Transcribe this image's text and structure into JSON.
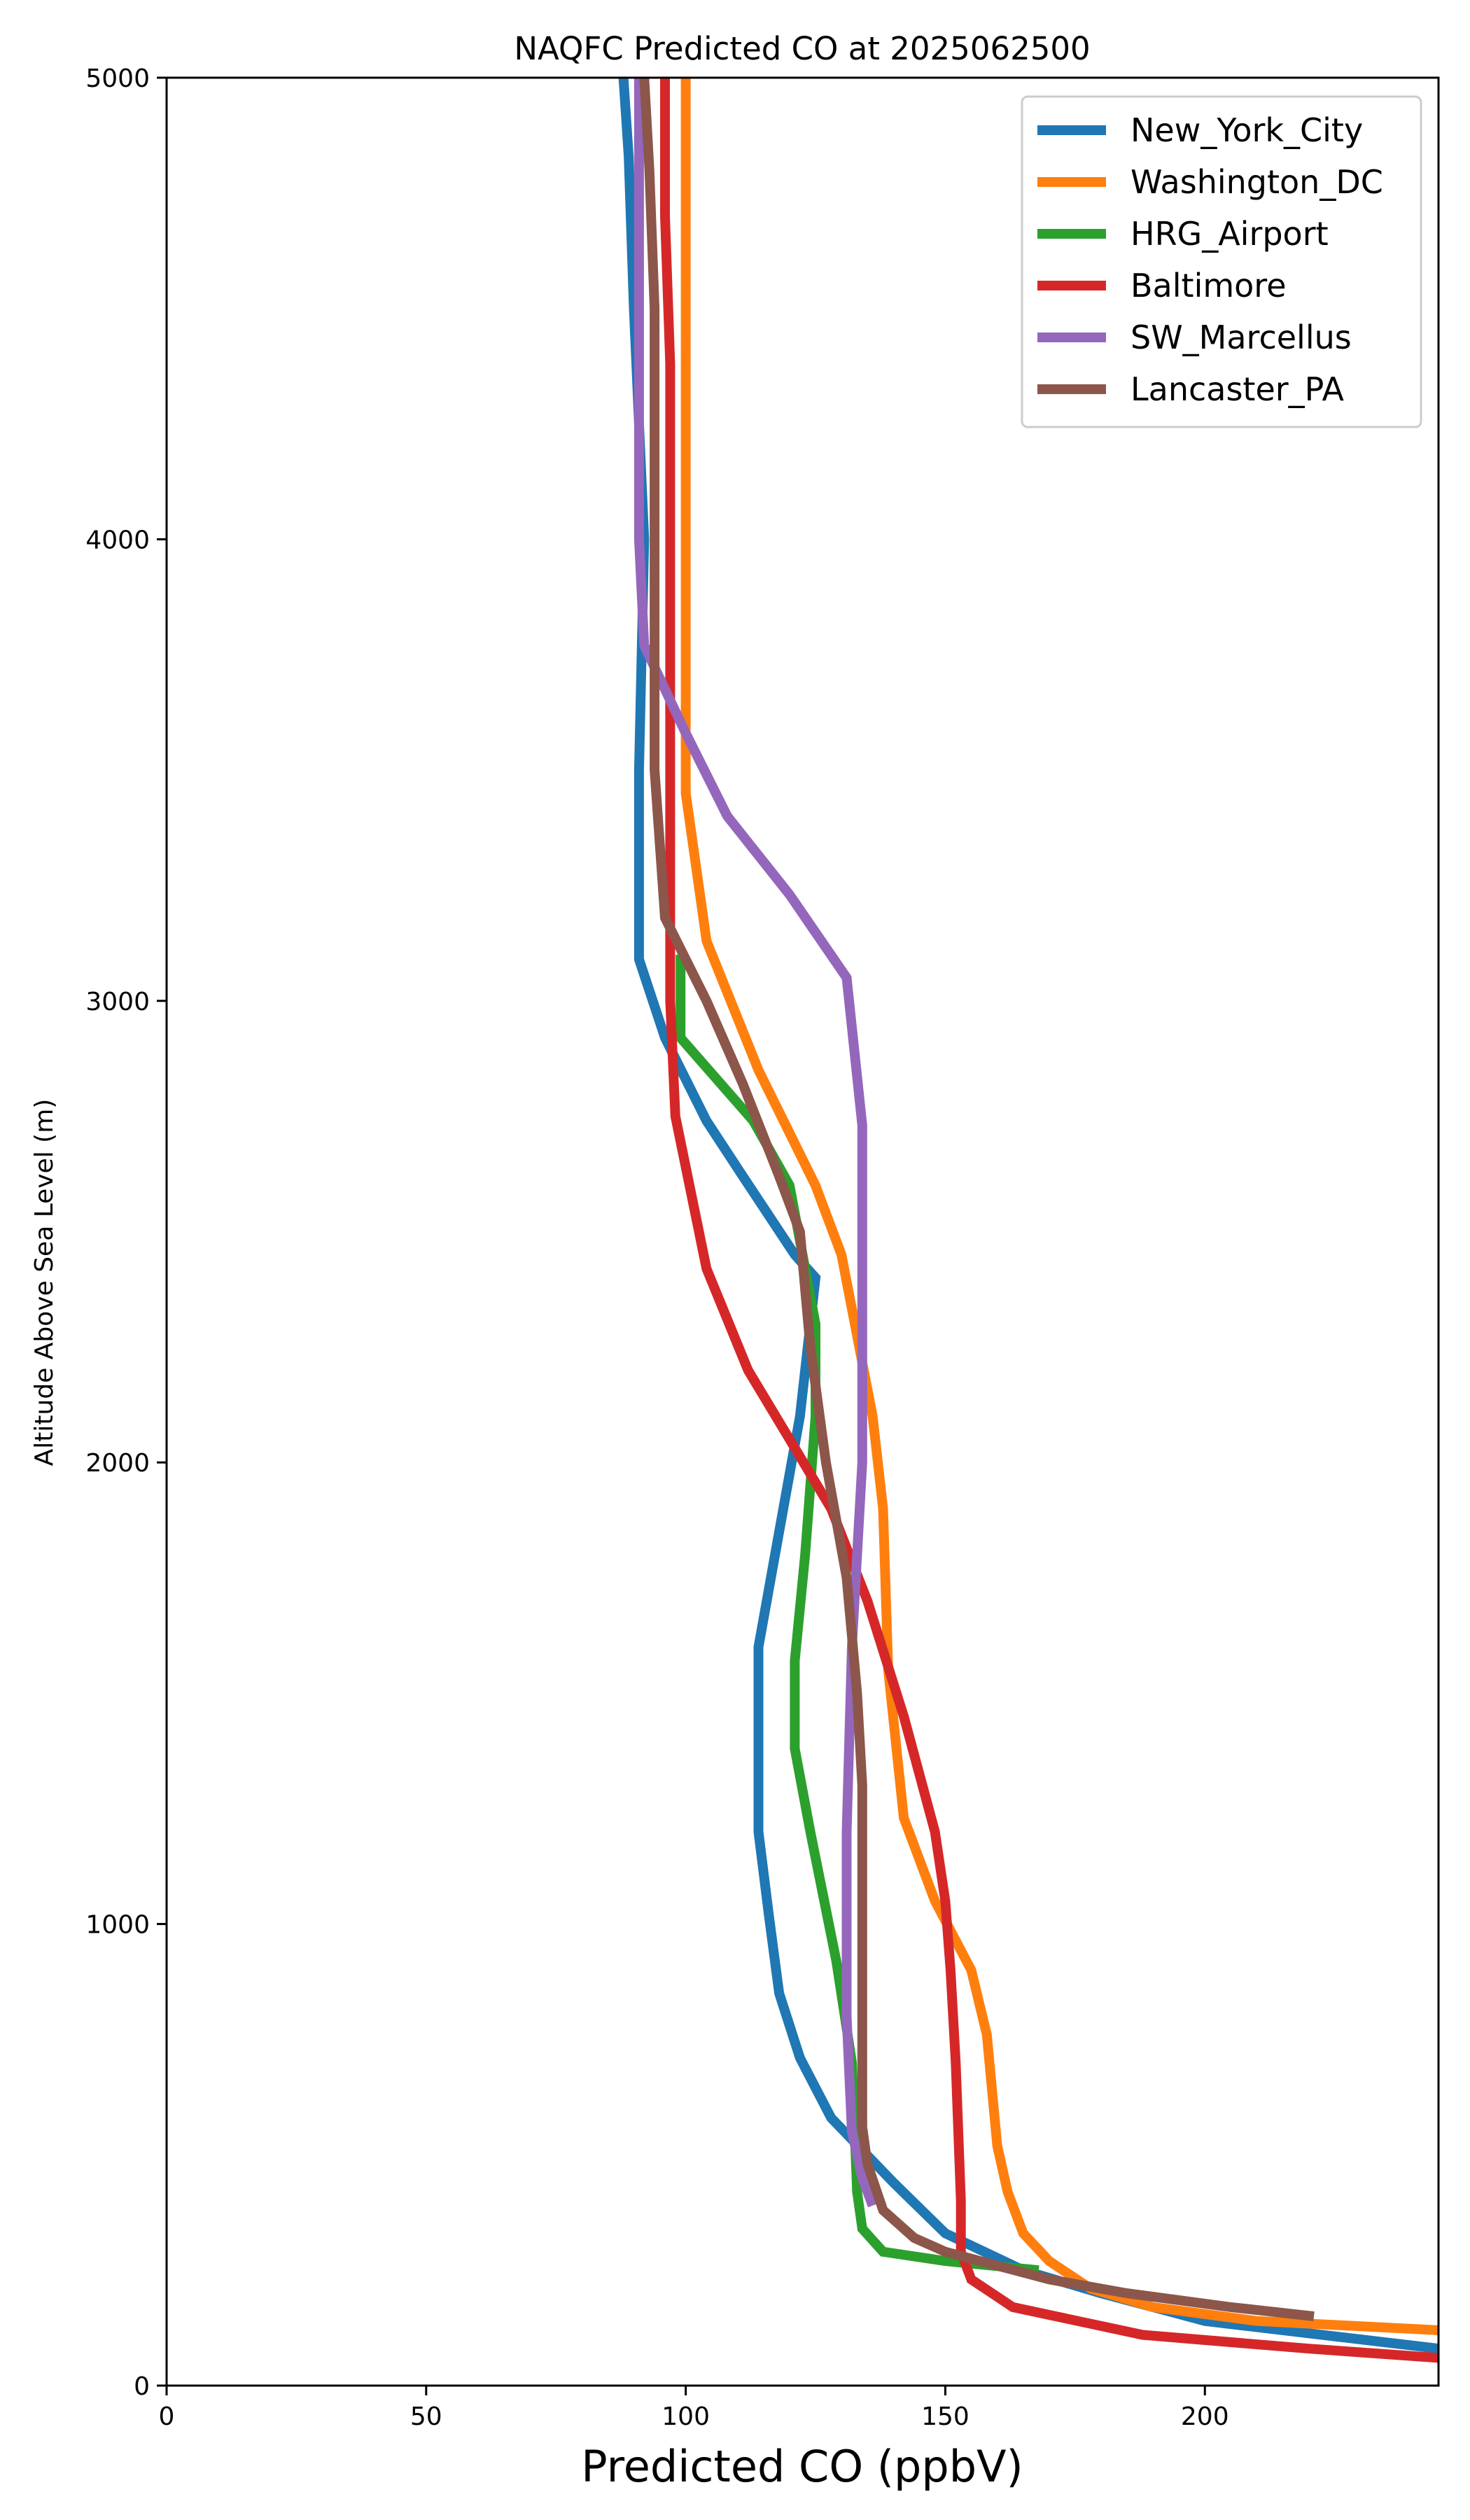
{
  "chart_data": {
    "type": "line",
    "title": "NAQFC Predicted CO at 2025062500",
    "xlabel": "Predicted CO (ppbV)",
    "ylabel": "Altitude Above Sea Level (m)",
    "xlim": [
      0,
      245
    ],
    "ylim": [
      0,
      5000
    ],
    "xticks": [
      "0",
      "50",
      "100",
      "150",
      "200"
    ],
    "yticks": [
      "0",
      "1000",
      "2000",
      "3000",
      "4000",
      "5000"
    ],
    "grid": false,
    "legend_position": "top-right",
    "series": [
      {
        "name": "New_York_City",
        "color": "#1f77b4",
        "points": [
          [
            245,
            80
          ],
          [
            200,
            140
          ],
          [
            180,
            200
          ],
          [
            165,
            250
          ],
          [
            150,
            330
          ],
          [
            140,
            440
          ],
          [
            128,
            580
          ],
          [
            122,
            710
          ],
          [
            118,
            850
          ],
          [
            116,
            1020
          ],
          [
            114,
            1200
          ],
          [
            114,
            1380
          ],
          [
            114,
            1600
          ],
          [
            118,
            1850
          ],
          [
            122,
            2100
          ],
          [
            125,
            2400
          ],
          [
            121,
            2450
          ],
          [
            111,
            2620
          ],
          [
            104,
            2740
          ],
          [
            96,
            2920
          ],
          [
            91,
            3090
          ],
          [
            91,
            3500
          ],
          [
            92,
            4000
          ],
          [
            90,
            4500
          ],
          [
            89,
            4830
          ],
          [
            88,
            5000
          ]
        ]
      },
      {
        "name": "Washington_DC",
        "color": "#ff7f0e",
        "points": [
          [
            245,
            120
          ],
          [
            210,
            140
          ],
          [
            190,
            170
          ],
          [
            178,
            210
          ],
          [
            170,
            270
          ],
          [
            165,
            330
          ],
          [
            162,
            420
          ],
          [
            160,
            520
          ],
          [
            158,
            760
          ],
          [
            155,
            900
          ],
          [
            148,
            1050
          ],
          [
            142,
            1230
          ],
          [
            139,
            1550
          ],
          [
            138,
            1900
          ],
          [
            136,
            2100
          ],
          [
            130,
            2450
          ],
          [
            125,
            2600
          ],
          [
            114,
            2850
          ],
          [
            104,
            3130
          ],
          [
            100,
            3450
          ],
          [
            100,
            4000
          ],
          [
            100,
            4500
          ],
          [
            100,
            4800
          ],
          [
            100,
            5000
          ]
        ]
      },
      {
        "name": "HRG_Airport",
        "color": "#2ca02c",
        "points": [
          [
            168,
            250
          ],
          [
            150,
            270
          ],
          [
            138,
            290
          ],
          [
            134,
            340
          ],
          [
            133,
            420
          ],
          [
            132,
            700
          ],
          [
            129,
            920
          ],
          [
            124,
            1200
          ],
          [
            121,
            1380
          ],
          [
            121,
            1570
          ],
          [
            123,
            1800
          ],
          [
            125,
            2100
          ],
          [
            125,
            2300
          ],
          [
            120,
            2600
          ],
          [
            113,
            2740
          ],
          [
            106,
            2830
          ],
          [
            99,
            2920
          ],
          [
            99,
            3100
          ]
        ]
      },
      {
        "name": "Baltimore",
        "color": "#d62728",
        "points": [
          [
            245,
            60
          ],
          [
            220,
            80
          ],
          [
            188,
            110
          ],
          [
            163,
            170
          ],
          [
            155,
            230
          ],
          [
            153,
            290
          ],
          [
            153,
            400
          ],
          [
            152,
            700
          ],
          [
            151,
            900
          ],
          [
            150,
            1050
          ],
          [
            148,
            1200
          ],
          [
            142,
            1450
          ],
          [
            135,
            1700
          ],
          [
            128,
            1900
          ],
          [
            120,
            2050
          ],
          [
            112,
            2200
          ],
          [
            104,
            2420
          ],
          [
            98,
            2750
          ],
          [
            97,
            3000
          ],
          [
            97,
            3500
          ],
          [
            97,
            4000
          ],
          [
            97,
            4380
          ],
          [
            96,
            4700
          ],
          [
            96,
            5000
          ]
        ]
      },
      {
        "name": "SW_Marcellus",
        "color": "#9467bd",
        "points": [
          [
            136,
            390
          ],
          [
            134,
            450
          ],
          [
            132,
            550
          ],
          [
            131,
            800
          ],
          [
            131,
            1200
          ],
          [
            132,
            1600
          ],
          [
            134,
            2000
          ],
          [
            134,
            2400
          ],
          [
            134,
            2730
          ],
          [
            131,
            3050
          ],
          [
            120,
            3230
          ],
          [
            108,
            3400
          ],
          [
            100,
            3580
          ],
          [
            92,
            3770
          ],
          [
            91,
            4000
          ],
          [
            91,
            4500
          ],
          [
            91,
            5000
          ]
        ]
      },
      {
        "name": "Lancaster_PA",
        "color": "#8c564b",
        "points": [
          [
            221,
            150
          ],
          [
            205,
            170
          ],
          [
            185,
            200
          ],
          [
            170,
            230
          ],
          [
            160,
            260
          ],
          [
            150,
            290
          ],
          [
            144,
            320
          ],
          [
            138,
            380
          ],
          [
            135,
            480
          ],
          [
            134,
            560
          ],
          [
            134,
            800
          ],
          [
            134,
            1000
          ],
          [
            134,
            1300
          ],
          [
            133,
            1500
          ],
          [
            131,
            1750
          ],
          [
            127,
            2000
          ],
          [
            124,
            2250
          ],
          [
            122,
            2500
          ],
          [
            118,
            2620
          ],
          [
            111,
            2820
          ],
          [
            104,
            3000
          ],
          [
            96,
            3180
          ],
          [
            94,
            3500
          ],
          [
            94,
            4000
          ],
          [
            94,
            4500
          ],
          [
            93,
            4800
          ],
          [
            92,
            5000
          ]
        ]
      }
    ]
  }
}
